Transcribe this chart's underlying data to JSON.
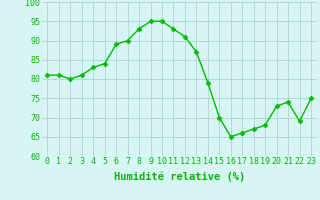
{
  "x": [
    0,
    1,
    2,
    3,
    4,
    5,
    6,
    7,
    8,
    9,
    10,
    11,
    12,
    13,
    14,
    15,
    16,
    17,
    18,
    19,
    20,
    21,
    22,
    23
  ],
  "y": [
    81,
    81,
    80,
    81,
    83,
    84,
    89,
    90,
    93,
    95,
    95,
    93,
    91,
    87,
    79,
    70,
    65,
    66,
    67,
    68,
    73,
    74,
    69,
    75
  ],
  "line_color": "#00bb00",
  "marker": "D",
  "marker_size": 2.5,
  "bg_color": "#d8f5f5",
  "grid_color": "#aacccc",
  "xlabel": "Humidité relative (%)",
  "xlabel_color": "#00bb00",
  "ylim": [
    60,
    100
  ],
  "yticks": [
    60,
    65,
    70,
    75,
    80,
    85,
    90,
    95,
    100
  ],
  "xticks": [
    0,
    1,
    2,
    3,
    4,
    5,
    6,
    7,
    8,
    9,
    10,
    11,
    12,
    13,
    14,
    15,
    16,
    17,
    18,
    19,
    20,
    21,
    22,
    23
  ],
  "tick_label_size": 6.0,
  "xlabel_size": 7.5
}
